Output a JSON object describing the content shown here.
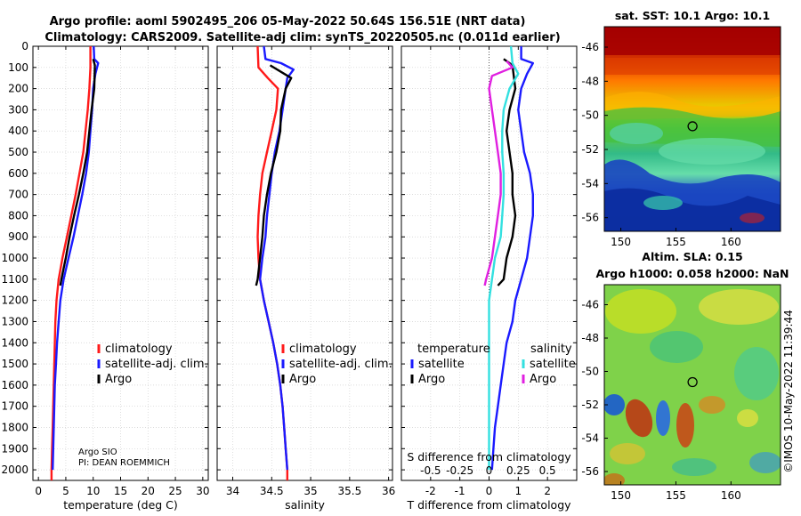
{
  "header": {
    "title_line1": "Argo profile: aoml 5902495_206 05-May-2022 50.64S 156.51E (NRT data)",
    "title_line2": "Climatology: CARS2009. Satellite-adj clim: synTS_20220505.nc (0.011d earlier)"
  },
  "sidebar_stamp": "©IMOS 10-May-2022 11:39:44",
  "chart_data": [
    {
      "id": "temperature",
      "type": "line",
      "xlabel": "temperature (deg C)",
      "ylabel": "",
      "xlim": [
        -1,
        31
      ],
      "ylim": [
        2050,
        0
      ],
      "xticks": [
        "0",
        "5",
        "10",
        "15",
        "20",
        "25",
        "30"
      ],
      "xtick_values": [
        0,
        5,
        10,
        15,
        20,
        25,
        30
      ],
      "yticks": [
        "0",
        "100",
        "200",
        "300",
        "400",
        "500",
        "600",
        "700",
        "800",
        "900",
        "1000",
        "1100",
        "1200",
        "1300",
        "1400",
        "1500",
        "1600",
        "1700",
        "1800",
        "1900",
        "2000"
      ],
      "ytick_values": [
        0,
        100,
        200,
        300,
        400,
        500,
        600,
        700,
        800,
        900,
        1000,
        1100,
        1200,
        1300,
        1400,
        1500,
        1600,
        1700,
        1800,
        1900,
        2000
      ],
      "grid": true,
      "legend_placement": "right-middle",
      "legend": [
        "climatology",
        "satellite-adj. clim.",
        "Argo"
      ],
      "annotation": [
        "Argo SIO",
        "PI: DEAN ROEMMICH"
      ],
      "series": [
        {
          "name": "climatology",
          "color": "#ff1a1a",
          "points": [
            [
              9.5,
              0
            ],
            [
              9.5,
              100
            ],
            [
              9.3,
              200
            ],
            [
              9.0,
              300
            ],
            [
              8.6,
              400
            ],
            [
              8.2,
              500
            ],
            [
              7.5,
              600
            ],
            [
              6.8,
              700
            ],
            [
              6.0,
              800
            ],
            [
              5.2,
              900
            ],
            [
              4.4,
              1000
            ],
            [
              3.7,
              1100
            ],
            [
              3.3,
              1200
            ],
            [
              3.1,
              1300
            ],
            [
              3.0,
              1400
            ],
            [
              2.9,
              1500
            ],
            [
              2.8,
              1600
            ],
            [
              2.7,
              1700
            ],
            [
              2.6,
              1800
            ],
            [
              2.5,
              1900
            ],
            [
              2.4,
              2000
            ],
            [
              2.4,
              2050
            ]
          ]
        },
        {
          "name": "satellite-adj. clim.",
          "color": "#1a1aff",
          "points": [
            [
              10.1,
              0
            ],
            [
              10.2,
              60
            ],
            [
              10.9,
              80
            ],
            [
              10.4,
              130
            ],
            [
              10.0,
              200
            ],
            [
              9.8,
              300
            ],
            [
              9.5,
              400
            ],
            [
              9.2,
              500
            ],
            [
              8.7,
              600
            ],
            [
              8.0,
              700
            ],
            [
              7.2,
              800
            ],
            [
              6.4,
              900
            ],
            [
              5.5,
              1000
            ],
            [
              4.6,
              1100
            ],
            [
              4.0,
              1200
            ],
            [
              3.7,
              1300
            ],
            [
              3.4,
              1400
            ],
            [
              3.2,
              1500
            ],
            [
              3.0,
              1600
            ],
            [
              2.9,
              1700
            ],
            [
              2.8,
              1800
            ],
            [
              2.7,
              1900
            ],
            [
              2.6,
              2000
            ]
          ]
        },
        {
          "name": "Argo",
          "color": "#000000",
          "points": [
            [
              10.0,
              60
            ],
            [
              10.3,
              90
            ],
            [
              10.2,
              200
            ],
            [
              9.7,
              300
            ],
            [
              9.3,
              400
            ],
            [
              8.9,
              500
            ],
            [
              8.2,
              600
            ],
            [
              7.4,
              700
            ],
            [
              6.5,
              800
            ],
            [
              5.7,
              900
            ],
            [
              5.0,
              1000
            ],
            [
              4.2,
              1100
            ],
            [
              4.0,
              1130
            ]
          ]
        }
      ]
    },
    {
      "id": "salinity",
      "type": "line",
      "xlabel": "salinity",
      "ylabel": "",
      "xlim": [
        33.8,
        36.05
      ],
      "ylim": [
        2050,
        0
      ],
      "xticks": [
        "34",
        "34.5",
        "35",
        "35.5",
        "36"
      ],
      "xtick_values": [
        34,
        34.5,
        35,
        35.5,
        36
      ],
      "grid": true,
      "legend_placement": "right-middle",
      "legend": [
        "climatology",
        "satellite-adj. clim.",
        "Argo"
      ],
      "series": [
        {
          "name": "climatology",
          "color": "#ff1a1a",
          "points": [
            [
              34.32,
              0
            ],
            [
              34.33,
              100
            ],
            [
              34.45,
              150
            ],
            [
              34.58,
              200
            ],
            [
              34.56,
              300
            ],
            [
              34.5,
              400
            ],
            [
              34.44,
              500
            ],
            [
              34.38,
              600
            ],
            [
              34.35,
              700
            ],
            [
              34.33,
              800
            ],
            [
              34.32,
              900
            ],
            [
              34.33,
              1000
            ],
            [
              34.35,
              1100
            ],
            [
              34.4,
              1200
            ],
            [
              34.46,
              1300
            ],
            [
              34.52,
              1400
            ],
            [
              34.57,
              1500
            ],
            [
              34.61,
              1600
            ],
            [
              34.64,
              1700
            ],
            [
              34.66,
              1800
            ],
            [
              34.68,
              1900
            ],
            [
              34.7,
              2000
            ],
            [
              34.7,
              2050
            ]
          ]
        },
        {
          "name": "satellite-adj. clim.",
          "color": "#1a1aff",
          "points": [
            [
              34.4,
              0
            ],
            [
              34.42,
              60
            ],
            [
              34.62,
              80
            ],
            [
              34.78,
              110
            ],
            [
              34.7,
              150
            ],
            [
              34.68,
              200
            ],
            [
              34.64,
              300
            ],
            [
              34.6,
              400
            ],
            [
              34.54,
              500
            ],
            [
              34.5,
              600
            ],
            [
              34.47,
              700
            ],
            [
              34.44,
              800
            ],
            [
              34.42,
              900
            ],
            [
              34.38,
              1000
            ],
            [
              34.35,
              1100
            ],
            [
              34.4,
              1200
            ],
            [
              34.46,
              1300
            ],
            [
              34.52,
              1400
            ],
            [
              34.57,
              1500
            ],
            [
              34.61,
              1600
            ],
            [
              34.64,
              1700
            ],
            [
              34.66,
              1800
            ],
            [
              34.68,
              1900
            ],
            [
              34.7,
              2000
            ]
          ]
        },
        {
          "name": "Argo",
          "color": "#000000",
          "points": [
            [
              34.48,
              90
            ],
            [
              34.75,
              150
            ],
            [
              34.68,
              200
            ],
            [
              34.62,
              300
            ],
            [
              34.61,
              400
            ],
            [
              34.56,
              500
            ],
            [
              34.49,
              600
            ],
            [
              34.44,
              700
            ],
            [
              34.4,
              800
            ],
            [
              34.38,
              900
            ],
            [
              34.35,
              1000
            ],
            [
              34.32,
              1100
            ],
            [
              34.3,
              1130
            ]
          ]
        }
      ]
    },
    {
      "id": "difference",
      "type": "line",
      "xlabel": "T difference from climatology",
      "ylabel": "",
      "xlim": [
        -3,
        3
      ],
      "ylim": [
        2050,
        0
      ],
      "xticks": [
        "-2",
        "-1",
        "0",
        "1",
        "2"
      ],
      "xtick_values": [
        -2,
        -1,
        0,
        1,
        2
      ],
      "top_axis_label": "S difference from climatology",
      "top_ticks": [
        "-0.5",
        "-0.25",
        "0",
        "0.25",
        "0.5"
      ],
      "top_tick_values": [
        -0.5,
        -0.25,
        0,
        0.25,
        0.5
      ],
      "grid": true,
      "zero_line": "dotted",
      "legend_left_title": "temperature",
      "legend_left": [
        "satellite",
        "Argo"
      ],
      "legend_right_title": "salinity",
      "legend_right": [
        "satellite",
        "Argo"
      ],
      "series": [
        {
          "name": "temperature satellite",
          "color": "#1a1aff",
          "points": [
            [
              1.1,
              0
            ],
            [
              1.1,
              60
            ],
            [
              1.5,
              80
            ],
            [
              1.3,
              130
            ],
            [
              1.1,
              200
            ],
            [
              1.0,
              300
            ],
            [
              1.1,
              400
            ],
            [
              1.2,
              500
            ],
            [
              1.4,
              600
            ],
            [
              1.5,
              700
            ],
            [
              1.5,
              800
            ],
            [
              1.4,
              900
            ],
            [
              1.3,
              1000
            ],
            [
              1.1,
              1100
            ],
            [
              0.9,
              1200
            ],
            [
              0.8,
              1300
            ],
            [
              0.6,
              1400
            ],
            [
              0.5,
              1500
            ],
            [
              0.4,
              1600
            ],
            [
              0.3,
              1700
            ],
            [
              0.2,
              1800
            ],
            [
              0.15,
              1900
            ],
            [
              0.1,
              2000
            ]
          ]
        },
        {
          "name": "temperature Argo",
          "color": "#000000",
          "points": [
            [
              0.5,
              60
            ],
            [
              0.8,
              90
            ],
            [
              0.9,
              200
            ],
            [
              0.7,
              300
            ],
            [
              0.6,
              400
            ],
            [
              0.7,
              500
            ],
            [
              0.8,
              600
            ],
            [
              0.8,
              700
            ],
            [
              0.9,
              800
            ],
            [
              0.8,
              900
            ],
            [
              0.6,
              1000
            ],
            [
              0.5,
              1100
            ],
            [
              0.3,
              1130
            ]
          ]
        },
        {
          "name": "salinity satellite",
          "color": "#33e0e0",
          "points": [
            [
              0.75,
              0
            ],
            [
              0.8,
              80
            ],
            [
              1.0,
              130
            ],
            [
              0.7,
              200
            ],
            [
              0.5,
              300
            ],
            [
              0.45,
              400
            ],
            [
              0.45,
              500
            ],
            [
              0.5,
              600
            ],
            [
              0.5,
              700
            ],
            [
              0.45,
              800
            ],
            [
              0.4,
              900
            ],
            [
              0.2,
              1000
            ],
            [
              0.1,
              1100
            ],
            [
              0.0,
              1200
            ],
            [
              0.0,
              1300
            ],
            [
              0.0,
              1400
            ],
            [
              0.0,
              1500
            ],
            [
              0.0,
              1600
            ],
            [
              0.0,
              1700
            ],
            [
              0.0,
              1800
            ],
            [
              0.0,
              1900
            ],
            [
              0.0,
              2000
            ]
          ]
        },
        {
          "name": "salinity Argo",
          "color": "#e020e0",
          "points": [
            [
              0.6,
              70
            ],
            [
              0.8,
              100
            ],
            [
              0.1,
              140
            ],
            [
              0.0,
              200
            ],
            [
              0.1,
              300
            ],
            [
              0.2,
              400
            ],
            [
              0.3,
              500
            ],
            [
              0.4,
              600
            ],
            [
              0.4,
              700
            ],
            [
              0.3,
              800
            ],
            [
              0.2,
              900
            ],
            [
              0.1,
              1000
            ],
            [
              -0.1,
              1100
            ],
            [
              -0.15,
              1130
            ]
          ]
        }
      ]
    },
    {
      "id": "sst_map",
      "type": "heatmap",
      "title": "sat. SST: 10.1 Argo: 10.1",
      "xlim": [
        148.5,
        164.5
      ],
      "ylim": [
        -56.8,
        -44.8
      ],
      "xticks": [
        "150",
        "155",
        "160"
      ],
      "xtick_values": [
        150,
        155,
        160
      ],
      "yticks": [
        "-46",
        "-48",
        "-50",
        "-52",
        "-54",
        "-56"
      ],
      "ytick_values": [
        -46,
        -48,
        -50,
        -52,
        -54,
        -56
      ],
      "marker": [
        156.51,
        -50.64
      ]
    },
    {
      "id": "sla_map",
      "type": "heatmap",
      "title_line1": "Altim. SLA: 0.15",
      "title_line2": "Argo h1000: 0.058 h2000: NaN",
      "xlim": [
        148.5,
        164.5
      ],
      "ylim": [
        -56.8,
        -44.8
      ],
      "xticks": [
        "150",
        "155",
        "160"
      ],
      "xtick_values": [
        150,
        155,
        160
      ],
      "yticks": [
        "-46",
        "-48",
        "-50",
        "-52",
        "-54",
        "-56"
      ],
      "ytick_values": [
        -46,
        -48,
        -50,
        -52,
        -54,
        -56
      ],
      "marker": [
        156.51,
        -50.64
      ]
    }
  ]
}
